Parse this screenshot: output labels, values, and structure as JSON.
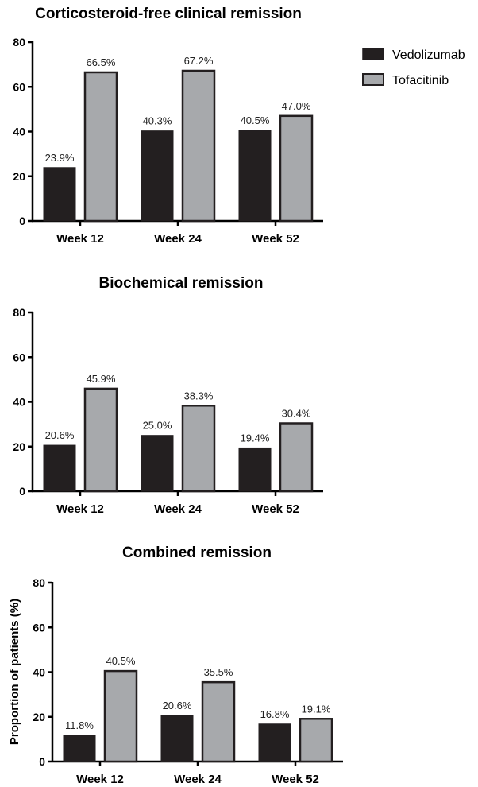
{
  "legend": {
    "placement": "top-right",
    "entries": [
      {
        "name": "Vedolizumab",
        "color": "#231f20"
      },
      {
        "name": "Tofacitinib",
        "color": "#a7a9ac"
      }
    ]
  },
  "chart_data": [
    {
      "type": "bar",
      "title": "Corticosteroid-free clinical remission",
      "categories": [
        "Week 12",
        "Week 24",
        "Week 52"
      ],
      "series": [
        {
          "name": "Vedolizumab",
          "values": [
            23.9,
            40.3,
            40.5
          ],
          "labels": [
            "23.9%",
            "40.3%",
            "40.5%"
          ]
        },
        {
          "name": "Tofacitinib",
          "values": [
            66.5,
            67.2,
            47.0
          ],
          "labels": [
            "66.5%",
            "67.2%",
            "47.0%"
          ]
        }
      ],
      "ylabel": "",
      "ylim": [
        0,
        80
      ],
      "yticks": [
        "0",
        "20",
        "40",
        "60",
        "80"
      ],
      "grid": false
    },
    {
      "type": "bar",
      "title": "Biochemical remission",
      "categories": [
        "Week 12",
        "Week 24",
        "Week 52"
      ],
      "series": [
        {
          "name": "Vedolizumab",
          "values": [
            20.6,
            25.0,
            19.4
          ],
          "labels": [
            "20.6%",
            "25.0%",
            "19.4%"
          ]
        },
        {
          "name": "Tofacitinib",
          "values": [
            45.9,
            38.3,
            30.4
          ],
          "labels": [
            "45.9%",
            "38.3%",
            "30.4%"
          ]
        }
      ],
      "ylabel": "",
      "ylim": [
        0,
        80
      ],
      "yticks": [
        "0",
        "20",
        "40",
        "60",
        "80"
      ],
      "grid": false
    },
    {
      "type": "bar",
      "title": "Combined remission",
      "categories": [
        "Week 12",
        "Week 24",
        "Week 52"
      ],
      "series": [
        {
          "name": "Vedolizumab",
          "values": [
            11.8,
            20.6,
            16.8
          ],
          "labels": [
            "11.8%",
            "20.6%",
            "16.8%"
          ]
        },
        {
          "name": "Tofacitinib",
          "values": [
            40.5,
            35.5,
            19.1
          ],
          "labels": [
            "40.5%",
            "35.5%",
            "19.1%"
          ]
        }
      ],
      "ylabel": "Proportion of patients (%)",
      "ylim": [
        0,
        80
      ],
      "yticks": [
        "0",
        "20",
        "40",
        "60",
        "80"
      ],
      "grid": false
    }
  ]
}
